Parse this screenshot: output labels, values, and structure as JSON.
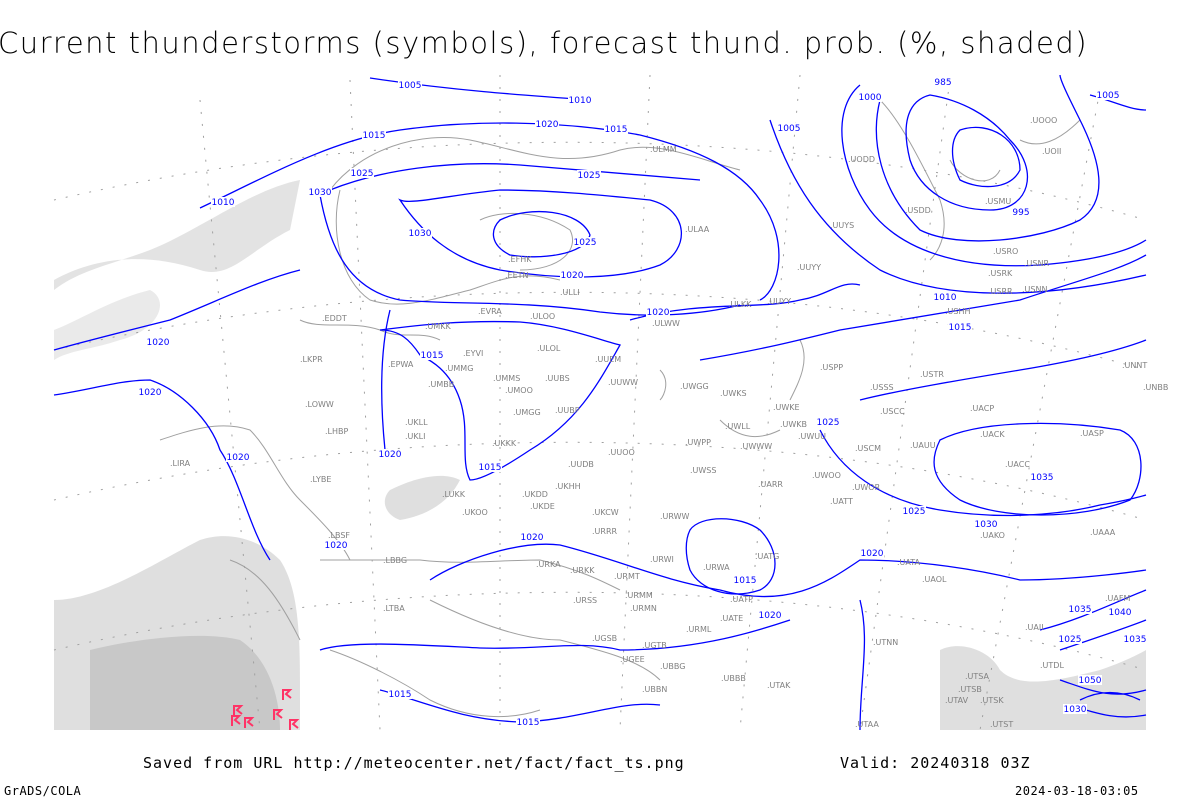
{
  "title": "Current thunderstorms (symbols), forecast thund. prob. (%, shaded)",
  "footer": {
    "saved_from": "Saved from URL http://meteocenter.net/fact/fact_ts.png",
    "valid": "Valid: 20240318 03Z",
    "credit": "GrADS/COLA",
    "timestamp": "2024-03-18-03:05"
  },
  "colors": {
    "isobar": "#0000ff",
    "coastline": "#a0a0a0",
    "station_label": "#808080",
    "probability_shade": "#dcdcdc",
    "thunderstorm_symbol": "#ff3366"
  },
  "isobar_labels": [
    "1005",
    "1010",
    "985",
    "1000",
    "1005",
    "1015",
    "1020",
    "1005",
    "1025",
    "1015",
    "995",
    "1010",
    "1030",
    "1030",
    "1025",
    "1025",
    "1020",
    "1010",
    "1015",
    "1020",
    "1015",
    "1020",
    "1020",
    "1020",
    "1015",
    "1020",
    "1025",
    "1025",
    "1035",
    "1030",
    "1020",
    "1015",
    "1020",
    "1020",
    "1020",
    "1015",
    "1015",
    "1035",
    "1040",
    "1025",
    "1035",
    "1050",
    "1030"
  ],
  "stations": [
    "ULMM",
    "UUYS",
    "UUYY",
    "ULAA",
    "EFHK",
    "EETN",
    "ULLI",
    "EVRA",
    "ULOO",
    "UMKK",
    "ULOL",
    "EYVI",
    "UMMG",
    "EPWA",
    "UMBB",
    "UMMS",
    "UMOO",
    "UUBS",
    "UUEM",
    "UUWW",
    "UWGG",
    "UWKS",
    "UMGG",
    "UUBP",
    "UKLL",
    "UKLI",
    "UKKK",
    "UUOO",
    "UUDB",
    "UKHH",
    "UKDD",
    "ULKK",
    "UUYY",
    "ULWW",
    "USPP",
    "USSS",
    "UWKE",
    "UWLL",
    "UWKB",
    "UWUU",
    "UWWW",
    "UWPP",
    "UWSS",
    "UWOO",
    "UARR",
    "USCC",
    "USTR",
    "UACP",
    "UACK",
    "UASP",
    "UACC",
    "UAKO",
    "LKPR",
    "EDDT",
    "LOWW",
    "LHBP",
    "LIRA",
    "LYBE",
    "LBSF",
    "LUKK",
    "UKOO",
    "UKDE",
    "UKCW",
    "URWW",
    "URRR",
    "URKA",
    "URKK",
    "URMT",
    "URWI",
    "URWA",
    "UATG",
    "UATT",
    "UWOR",
    "USCM",
    "UAUU",
    "LBBG",
    "LTBA",
    "URSS",
    "URMM",
    "URMN",
    "UGSB",
    "UGTB",
    "URML",
    "UATE",
    "UATP",
    "UGEE",
    "UBBG",
    "UBBB",
    "UBBN",
    "UTAK",
    "UTNN",
    "UTAA",
    "UAOL",
    "UATA",
    "UODD",
    "USDD",
    "USMU",
    "UOII",
    "UOOO",
    "USRO",
    "USRK",
    "USNR",
    "USRR",
    "USNN",
    "USHH",
    "UNNT",
    "UNBB",
    "UAAA",
    "UTSA",
    "UTSB",
    "UTAV",
    "UTSK",
    "UTST",
    "UTDL",
    "UAFM",
    "UAII"
  ],
  "thunderstorm_symbol": "thunderstorm-icon"
}
